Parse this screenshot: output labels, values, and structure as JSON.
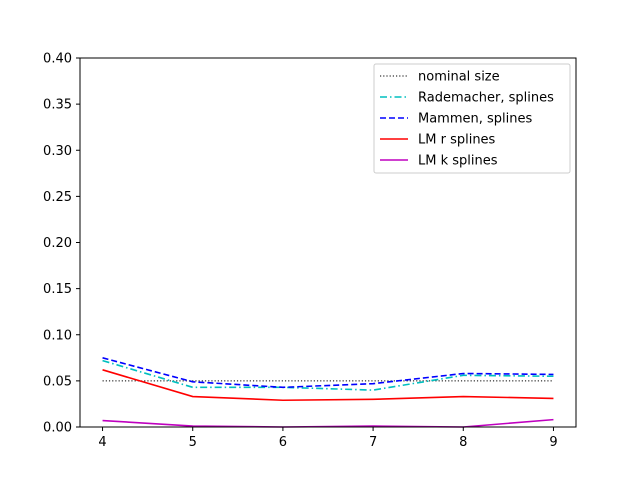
{
  "chart_data": {
    "type": "line",
    "title": "",
    "xlabel": "",
    "ylabel": "",
    "x": [
      4,
      5,
      6,
      7,
      8,
      9
    ],
    "xlim": [
      3.75,
      9.25
    ],
    "ylim": [
      0,
      0.4
    ],
    "xticks": [
      "4",
      "5",
      "6",
      "7",
      "8",
      "9"
    ],
    "yticks": [
      "0.00",
      "0.05",
      "0.10",
      "0.15",
      "0.20",
      "0.25",
      "0.30",
      "0.35",
      "0.40"
    ],
    "ytick_values": [
      0,
      0.05,
      0.1,
      0.15,
      0.2,
      0.25,
      0.3,
      0.35,
      0.4
    ],
    "grid": false,
    "legend_position": "top-right",
    "series": [
      {
        "name": "nominal size",
        "color": "#000000",
        "style": "dotted",
        "values": [
          0.05,
          0.05,
          0.05,
          0.05,
          0.05,
          0.05
        ]
      },
      {
        "name": "Rademacher, splines",
        "color": "#00bfbf",
        "style": "dashdot",
        "values": [
          0.072,
          0.043,
          0.043,
          0.04,
          0.056,
          0.055
        ]
      },
      {
        "name": "Mammen, splines",
        "color": "#0000ff",
        "style": "dashed",
        "values": [
          0.075,
          0.049,
          0.043,
          0.047,
          0.058,
          0.057
        ]
      },
      {
        "name": "LM r splines",
        "color": "#ff0000",
        "style": "solid",
        "values": [
          0.062,
          0.033,
          0.029,
          0.03,
          0.033,
          0.031
        ]
      },
      {
        "name": "LM k splines",
        "color": "#bf00bf",
        "style": "solid",
        "values": [
          0.007,
          0.001,
          0.0,
          0.001,
          0.0,
          0.008
        ]
      }
    ]
  }
}
